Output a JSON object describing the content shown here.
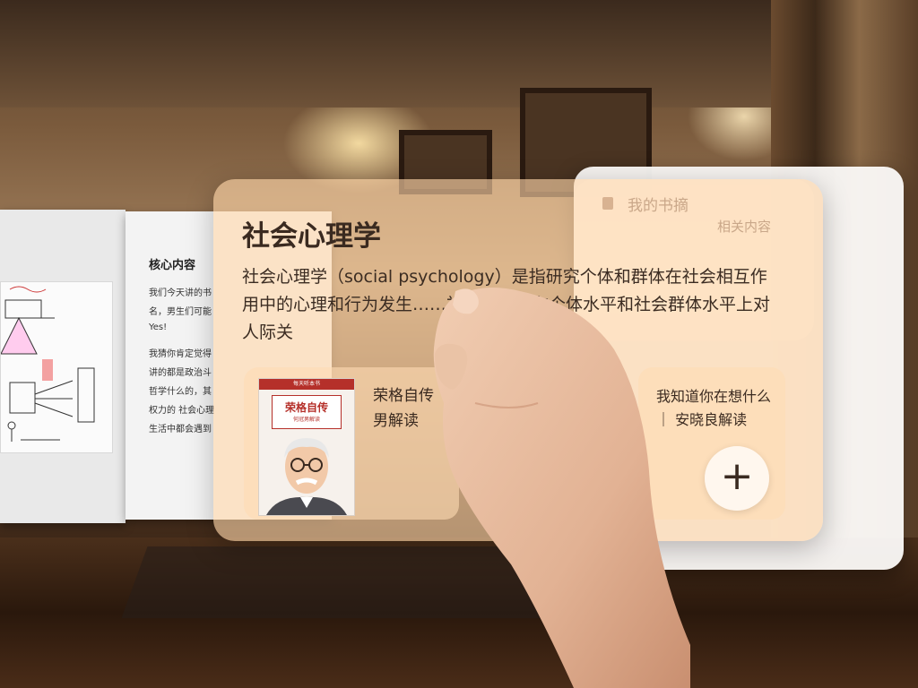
{
  "left_book": {
    "section_title": "核心内容",
    "lines": [
      "我们今天讲的书",
      "名，男生们可能",
      "Yes!",
      "我猜你肯定觉得",
      "讲的都是政治斗",
      "哲学什么的，其",
      "权力的 社会心理",
      "生活中都会遇到"
    ]
  },
  "main_card": {
    "title": "社会心理学",
    "description": "社会心理学（social psychology）是指研究个体和群体在社会相互作用中的心理和行为发生……社会心理学在个体水平和社会群体水平上对人际关"
  },
  "side_panel": {
    "excerpt_label": "我的书摘",
    "related_label": "相关内容"
  },
  "books": [
    {
      "title": "荣格自传 男解读",
      "cover_header": "每天听本书",
      "cover_title": "荣格自传",
      "cover_subtitle": "何冠男解读"
    },
    {
      "title": "我知道你在想什么｜ 安晓良解读"
    }
  ],
  "add_button": {
    "label": "+"
  },
  "colors": {
    "card_tint": "#ffd6aa",
    "text_dark": "#3a2a20",
    "muted_text": "#c9a789"
  }
}
